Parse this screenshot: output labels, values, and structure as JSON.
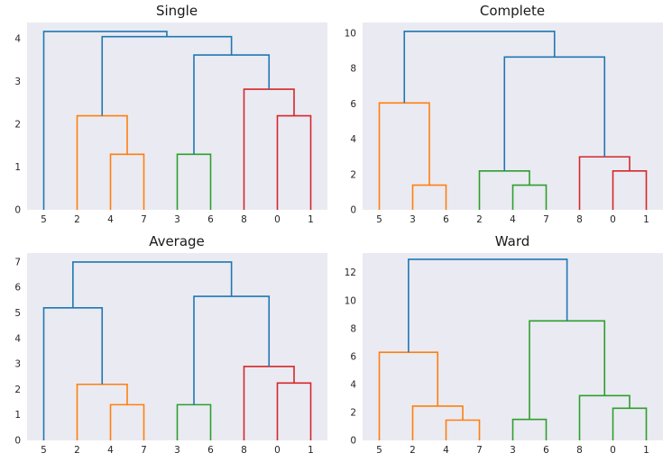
{
  "figure": {
    "background": "#ffffff",
    "panel_background": "#eaeaf2"
  },
  "colors": {
    "blue": "#1f77b4",
    "orange": "#ff7f0e",
    "green": "#2ca02c",
    "red": "#d62728"
  },
  "chart_data": [
    {
      "type": "dendrogram",
      "title": "Single",
      "leaves": [
        "5",
        "2",
        "4",
        "7",
        "3",
        "6",
        "8",
        "0",
        "1"
      ],
      "yticks": [
        0,
        1,
        2,
        3,
        4
      ],
      "ylim": [
        0,
        4.38
      ],
      "grid": false,
      "links": [
        {
          "a": "L2",
          "b": "L3",
          "h": 1.3,
          "color": "orange"
        },
        {
          "a": "L1",
          "b": "M0",
          "h": 2.2,
          "color": "orange"
        },
        {
          "a": "L4",
          "b": "L5",
          "h": 1.3,
          "color": "green"
        },
        {
          "a": "L7",
          "b": "L8",
          "h": 2.2,
          "color": "red"
        },
        {
          "a": "L6",
          "b": "M3",
          "h": 2.82,
          "color": "red"
        },
        {
          "a": "M2",
          "b": "M4",
          "h": 3.62,
          "color": "blue"
        },
        {
          "a": "M1",
          "b": "M5",
          "h": 4.05,
          "color": "blue"
        },
        {
          "a": "L0",
          "b": "M6",
          "h": 4.17,
          "color": "blue"
        }
      ]
    },
    {
      "type": "dendrogram",
      "title": "Complete",
      "leaves": [
        "5",
        "3",
        "6",
        "2",
        "4",
        "7",
        "8",
        "0",
        "1"
      ],
      "yticks": [
        0,
        2,
        4,
        6,
        8,
        10
      ],
      "ylim": [
        0,
        10.6
      ],
      "grid": false,
      "links": [
        {
          "a": "L1",
          "b": "L2",
          "h": 1.4,
          "color": "orange"
        },
        {
          "a": "L0",
          "b": "M0",
          "h": 6.05,
          "color": "orange"
        },
        {
          "a": "L4",
          "b": "L5",
          "h": 1.4,
          "color": "green"
        },
        {
          "a": "L3",
          "b": "M2",
          "h": 2.2,
          "color": "green"
        },
        {
          "a": "L7",
          "b": "L8",
          "h": 2.2,
          "color": "red"
        },
        {
          "a": "L6",
          "b": "M4",
          "h": 3.0,
          "color": "red"
        },
        {
          "a": "M3",
          "b": "M5",
          "h": 8.65,
          "color": "blue"
        },
        {
          "a": "M1",
          "b": "M6",
          "h": 10.1,
          "color": "blue"
        }
      ]
    },
    {
      "type": "dendrogram",
      "title": "Average",
      "leaves": [
        "5",
        "2",
        "4",
        "7",
        "3",
        "6",
        "8",
        "0",
        "1"
      ],
      "yticks": [
        0,
        1,
        2,
        3,
        4,
        5,
        6,
        7
      ],
      "ylim": [
        0,
        7.35
      ],
      "grid": false,
      "links": [
        {
          "a": "L2",
          "b": "L3",
          "h": 1.4,
          "color": "orange"
        },
        {
          "a": "L1",
          "b": "M0",
          "h": 2.2,
          "color": "orange"
        },
        {
          "a": "L4",
          "b": "L5",
          "h": 1.4,
          "color": "green"
        },
        {
          "a": "L7",
          "b": "L8",
          "h": 2.25,
          "color": "red"
        },
        {
          "a": "L6",
          "b": "M3",
          "h": 2.9,
          "color": "red"
        },
        {
          "a": "L0",
          "b": "M1",
          "h": 5.2,
          "color": "blue"
        },
        {
          "a": "M2",
          "b": "M4",
          "h": 5.65,
          "color": "blue"
        },
        {
          "a": "M5",
          "b": "M6",
          "h": 7.0,
          "color": "blue"
        }
      ]
    },
    {
      "type": "dendrogram",
      "title": "Ward",
      "leaves": [
        "5",
        "2",
        "4",
        "7",
        "3",
        "6",
        "8",
        "0",
        "1"
      ],
      "yticks": [
        0,
        2,
        4,
        6,
        8,
        10,
        12
      ],
      "ylim": [
        0,
        13.4
      ],
      "grid": false,
      "links": [
        {
          "a": "L2",
          "b": "L3",
          "h": 1.45,
          "color": "orange"
        },
        {
          "a": "L1",
          "b": "M0",
          "h": 2.45,
          "color": "orange"
        },
        {
          "a": "L0",
          "b": "M1",
          "h": 6.3,
          "color": "orange"
        },
        {
          "a": "L4",
          "b": "L5",
          "h": 1.5,
          "color": "green"
        },
        {
          "a": "L7",
          "b": "L8",
          "h": 2.3,
          "color": "green"
        },
        {
          "a": "L6",
          "b": "M4",
          "h": 3.2,
          "color": "green"
        },
        {
          "a": "M3",
          "b": "M5",
          "h": 8.55,
          "color": "green"
        },
        {
          "a": "M2",
          "b": "M6",
          "h": 12.95,
          "color": "blue"
        }
      ]
    }
  ]
}
